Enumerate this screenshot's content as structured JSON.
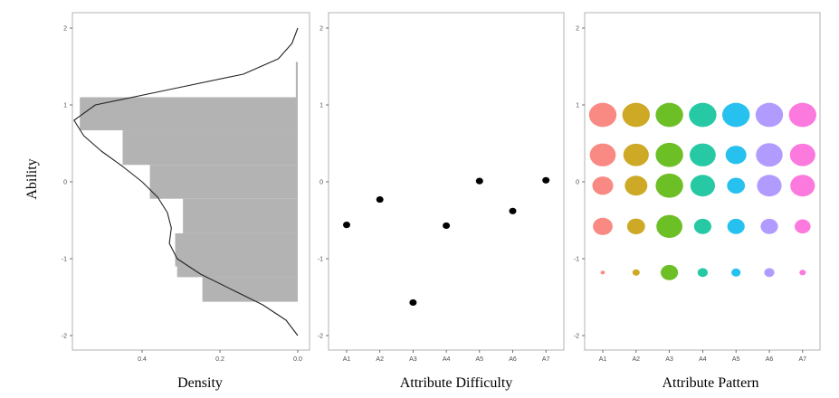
{
  "ylabel": "Ability",
  "chart_data": [
    {
      "type": "bar",
      "orientation": "horizontal",
      "xlabel": "Density",
      "ylabel": "Ability",
      "x_reversed": true,
      "xlim": [
        0.6,
        0.0
      ],
      "ylim": [
        -2,
        2
      ],
      "x_ticks": [
        "0.4",
        "0.2",
        "0.0"
      ],
      "y_ticks": [
        "-2",
        "-1",
        "0",
        "1",
        "2"
      ],
      "grid": false,
      "bars": [
        {
          "y_low": -1.56,
          "y_high": -1.24,
          "value": 0.245
        },
        {
          "y_low": -1.24,
          "y_high": -1.1,
          "value": 0.31
        },
        {
          "y_low": -1.1,
          "y_high": -0.67,
          "value": 0.315
        },
        {
          "y_low": -0.67,
          "y_high": -0.22,
          "value": 0.295
        },
        {
          "y_low": -0.22,
          "y_high": 0.22,
          "value": 0.38
        },
        {
          "y_low": 0.22,
          "y_high": 0.67,
          "value": 0.45
        },
        {
          "y_low": 0.67,
          "y_high": 1.1,
          "value": 0.56
        },
        {
          "y_low": 1.1,
          "y_high": 1.56,
          "value": 0.005
        }
      ],
      "density_curve": [
        {
          "y": -2.0,
          "x": 0.0
        },
        {
          "y": -1.8,
          "x": 0.03
        },
        {
          "y": -1.6,
          "x": 0.09
        },
        {
          "y": -1.4,
          "x": 0.17
        },
        {
          "y": -1.2,
          "x": 0.25
        },
        {
          "y": -1.0,
          "x": 0.31
        },
        {
          "y": -0.8,
          "x": 0.33
        },
        {
          "y": -0.6,
          "x": 0.325
        },
        {
          "y": -0.4,
          "x": 0.335
        },
        {
          "y": -0.2,
          "x": 0.36
        },
        {
          "y": 0.0,
          "x": 0.4
        },
        {
          "y": 0.2,
          "x": 0.45
        },
        {
          "y": 0.4,
          "x": 0.505
        },
        {
          "y": 0.6,
          "x": 0.55
        },
        {
          "y": 0.8,
          "x": 0.575
        },
        {
          "y": 1.0,
          "x": 0.52
        },
        {
          "y": 1.2,
          "x": 0.33
        },
        {
          "y": 1.4,
          "x": 0.14
        },
        {
          "y": 1.6,
          "x": 0.05
        },
        {
          "y": 1.8,
          "x": 0.015
        },
        {
          "y": 2.0,
          "x": 0.0
        }
      ]
    },
    {
      "type": "scatter",
      "xlabel": "Attribute Difficulty",
      "ylabel": "Ability",
      "ylim": [
        -2,
        2
      ],
      "categories": [
        "A1",
        "A2",
        "A3",
        "A4",
        "A5",
        "A6",
        "A7"
      ],
      "y_ticks": [
        "-2",
        "-1",
        "0",
        "1",
        "2"
      ],
      "grid": false,
      "values": [
        -0.56,
        -0.23,
        -1.57,
        -0.57,
        0.01,
        -0.38,
        0.02
      ]
    },
    {
      "type": "scatter",
      "subtype": "bubble",
      "xlabel": "Attribute Pattern",
      "ylabel": "Ability",
      "ylim": [
        -2,
        2
      ],
      "categories": [
        "A1",
        "A2",
        "A3",
        "A4",
        "A5",
        "A6",
        "A7"
      ],
      "y_ticks": [
        "-2",
        "-1",
        "0",
        "1",
        "2"
      ],
      "grid": false,
      "colors": [
        "#F8766D",
        "#C49A00",
        "#53B400",
        "#00C094",
        "#00B6EB",
        "#A58AFF",
        "#FB61D7"
      ],
      "rows": [
        {
          "y": 0.87,
          "sizes": [
            0.95,
            0.95,
            0.95,
            0.95,
            0.95,
            0.95,
            0.95
          ]
        },
        {
          "y": 0.35,
          "sizes": [
            0.9,
            0.88,
            0.95,
            0.9,
            0.72,
            0.92,
            0.88
          ]
        },
        {
          "y": -0.05,
          "sizes": [
            0.72,
            0.78,
            0.95,
            0.85,
            0.62,
            0.85,
            0.85
          ]
        },
        {
          "y": -0.58,
          "sizes": [
            0.68,
            0.62,
            0.9,
            0.6,
            0.6,
            0.6,
            0.55
          ]
        },
        {
          "y": -1.18,
          "sizes": [
            0.15,
            0.25,
            0.6,
            0.35,
            0.32,
            0.35,
            0.22
          ]
        }
      ]
    }
  ]
}
